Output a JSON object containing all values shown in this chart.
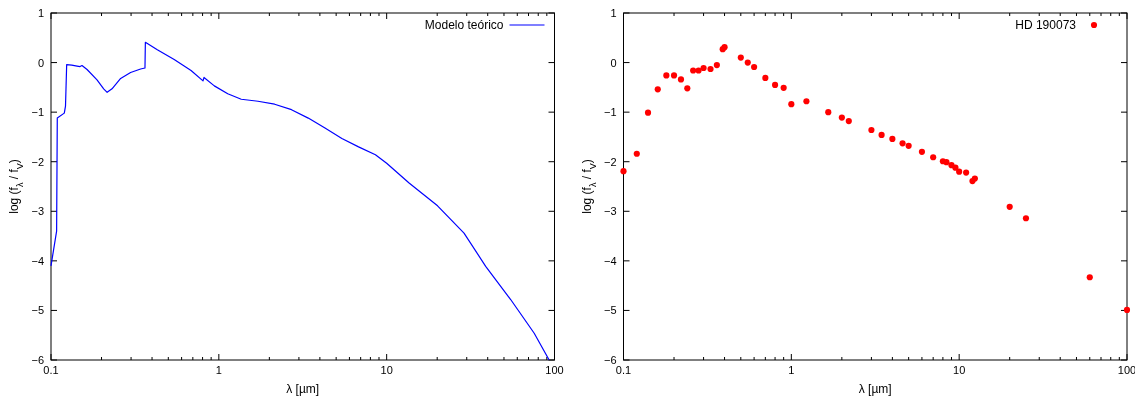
{
  "chart_data": [
    {
      "type": "line",
      "xlabel": "λ [µm]",
      "ylabel": "log (f$_{λ}$ / f$_{V}$)",
      "log": "x",
      "xlim": [
        0.1,
        100
      ],
      "ylim": [
        -6,
        1
      ],
      "xticks": [
        0.1,
        {
          "value": 0.2,
          "label": null
        },
        {
          "value": 0.3,
          "label": null
        },
        {
          "value": 0.4,
          "label": null
        },
        {
          "value": 0.5,
          "label": null
        },
        {
          "value": 0.6,
          "label": null
        },
        {
          "value": 0.7,
          "label": null
        },
        {
          "value": 0.8,
          "label": null
        },
        {
          "value": 0.9,
          "label": null
        },
        1,
        {
          "value": 2,
          "label": null
        },
        {
          "value": 3,
          "label": null
        },
        {
          "value": 4,
          "label": null
        },
        {
          "value": 5,
          "label": null
        },
        {
          "value": 6,
          "label": null
        },
        {
          "value": 7,
          "label": null
        },
        {
          "value": 8,
          "label": null
        },
        {
          "value": 9,
          "label": null
        },
        10,
        {
          "value": 20,
          "label": null
        },
        {
          "value": 30,
          "label": null
        },
        {
          "value": 40,
          "label": null
        },
        {
          "value": 50,
          "label": null
        },
        {
          "value": 60,
          "label": null
        },
        {
          "value": 70,
          "label": null
        },
        {
          "value": 80,
          "label": null
        },
        {
          "value": 90,
          "label": null
        },
        100
      ],
      "yticks": [
        -6,
        -5,
        -4,
        -3,
        -2,
        -1,
        0,
        1
      ],
      "grid": false,
      "legend": "top right",
      "marker": "none",
      "line_style": "solid",
      "series": [
        {
          "name": "Modelo teórico",
          "color": "#0000ff",
          "x": [
            0.1,
            0.108,
            0.109,
            0.12,
            0.122,
            0.124,
            0.133,
            0.143,
            0.149,
            0.153,
            0.164,
            0.188,
            0.206,
            0.216,
            0.231,
            0.26,
            0.298,
            0.342,
            0.363,
            0.365,
            0.43,
            0.542,
            0.683,
            0.805,
            0.816,
            0.94,
            1.13,
            1.36,
            1.71,
            2.15,
            2.71,
            3.41,
            4.29,
            5.41,
            6.8,
            8.57,
            10,
            13.6,
            20.1,
            28.9,
            38.9,
            54.8,
            75.7,
            92.9
          ],
          "values": [
            -4.1,
            -3.4,
            -1.12,
            -1.02,
            -0.88,
            -0.04,
            -0.05,
            -0.07,
            -0.08,
            -0.06,
            -0.14,
            -0.35,
            -0.53,
            -0.6,
            -0.53,
            -0.32,
            -0.2,
            -0.13,
            -0.11,
            0.41,
            0.26,
            0.06,
            -0.16,
            -0.37,
            -0.3,
            -0.47,
            -0.63,
            -0.74,
            -0.78,
            -0.84,
            -0.95,
            -1.12,
            -1.32,
            -1.53,
            -1.7,
            -1.86,
            -2.03,
            -2.43,
            -2.89,
            -3.44,
            -4.11,
            -4.78,
            -5.46,
            -6.0
          ]
        }
      ]
    },
    {
      "type": "scatter",
      "xlabel": "λ [µm]",
      "ylabel": "log (f$_{λ}$ / f$_{V}$)",
      "log": "x",
      "xlim": [
        0.1,
        100
      ],
      "ylim": [
        -6,
        1
      ],
      "xticks": [
        0.1,
        {
          "value": 0.2,
          "label": null
        },
        {
          "value": 0.3,
          "label": null
        },
        {
          "value": 0.4,
          "label": null
        },
        {
          "value": 0.5,
          "label": null
        },
        {
          "value": 0.6,
          "label": null
        },
        {
          "value": 0.7,
          "label": null
        },
        {
          "value": 0.8,
          "label": null
        },
        {
          "value": 0.9,
          "label": null
        },
        1,
        {
          "value": 2,
          "label": null
        },
        {
          "value": 3,
          "label": null
        },
        {
          "value": 4,
          "label": null
        },
        {
          "value": 5,
          "label": null
        },
        {
          "value": 6,
          "label": null
        },
        {
          "value": 7,
          "label": null
        },
        {
          "value": 8,
          "label": null
        },
        {
          "value": 9,
          "label": null
        },
        10,
        {
          "value": 20,
          "label": null
        },
        {
          "value": 30,
          "label": null
        },
        {
          "value": 40,
          "label": null
        },
        {
          "value": 50,
          "label": null
        },
        {
          "value": 60,
          "label": null
        },
        {
          "value": 70,
          "label": null
        },
        {
          "value": 80,
          "label": null
        },
        {
          "value": 90,
          "label": null
        },
        100
      ],
      "yticks": [
        -6,
        -5,
        -4,
        -3,
        -2,
        -1,
        0,
        1
      ],
      "grid": false,
      "legend": "top right",
      "marker": "circle",
      "series": [
        {
          "name": "HD 190073",
          "color": "#ff0000",
          "x": [
            0.1,
            0.12,
            0.14,
            0.16,
            0.18,
            0.2,
            0.22,
            0.24,
            0.26,
            0.28,
            0.3,
            0.33,
            0.36,
            0.39,
            0.4,
            0.5,
            0.55,
            0.6,
            0.7,
            0.8,
            0.9,
            1.0,
            1.23,
            1.66,
            2.0,
            2.2,
            3.0,
            3.45,
            4.0,
            4.6,
            5.0,
            6.0,
            7.0,
            8.0,
            8.4,
            9.0,
            9.5,
            10,
            11,
            12,
            12.4,
            20,
            25,
            60,
            100
          ],
          "values": [
            -2.19,
            -1.84,
            -1.01,
            -0.54,
            -0.26,
            -0.26,
            -0.34,
            -0.52,
            -0.16,
            -0.16,
            -0.11,
            -0.13,
            -0.05,
            0.27,
            0.31,
            0.1,
            0.0,
            -0.09,
            -0.31,
            -0.45,
            -0.51,
            -0.84,
            -0.78,
            -1.0,
            -1.11,
            -1.18,
            -1.36,
            -1.46,
            -1.54,
            -1.63,
            -1.68,
            -1.8,
            -1.91,
            -1.99,
            -2.01,
            -2.07,
            -2.12,
            -2.2,
            -2.22,
            -2.39,
            -2.34,
            -2.91,
            -3.14,
            -4.33,
            -4.99
          ]
        }
      ]
    }
  ]
}
